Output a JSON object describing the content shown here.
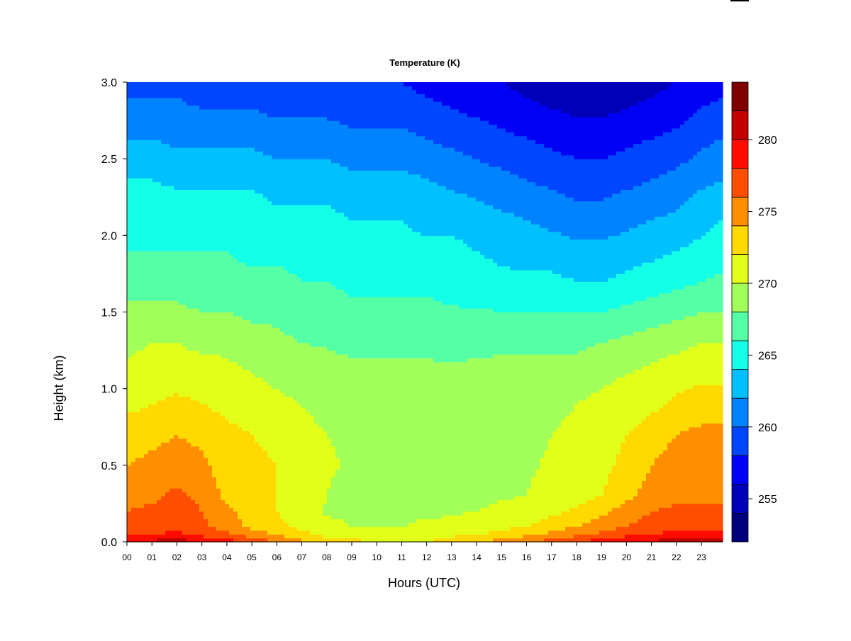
{
  "chart_data": {
    "type": "heatmap",
    "title": "Temperature (K)",
    "xlabel": "Hours (UTC)",
    "ylabel": "Height (km)",
    "x_ticks": [
      "00",
      "01",
      "02",
      "03",
      "04",
      "05",
      "06",
      "07",
      "08",
      "09",
      "10",
      "11",
      "12",
      "13",
      "14",
      "15",
      "16",
      "17",
      "18",
      "19",
      "20",
      "21",
      "22",
      "23"
    ],
    "y_ticks": [
      "0.0",
      "0.5",
      "1.0",
      "1.5",
      "2.0",
      "2.5",
      "3.0"
    ],
    "xlim": [
      0,
      23.85
    ],
    "ylim": [
      0,
      3.0
    ],
    "colorbar": {
      "levels": [
        252,
        254,
        256,
        258,
        260,
        262,
        264,
        266,
        268,
        270,
        272,
        274,
        276,
        278,
        280,
        282,
        284
      ],
      "colors": [
        "#00007f",
        "#0000b8",
        "#0000f5",
        "#0046ff",
        "#0083ff",
        "#00c0ff",
        "#14ffe7",
        "#55ffa6",
        "#a2ff5a",
        "#e2ff19",
        "#ffd900",
        "#ff8e00",
        "#ff4e00",
        "#ff0c00",
        "#c30000",
        "#7f0000"
      ],
      "tick_labels": [
        "255",
        "260",
        "265",
        "270",
        "275",
        "280"
      ],
      "tick_values": [
        255,
        260,
        265,
        270,
        275,
        280
      ]
    },
    "heights_km": [
      0.0,
      0.05,
      0.1,
      0.2,
      0.3,
      0.5,
      0.7,
      0.9,
      1.1,
      1.3,
      1.5,
      1.7,
      1.9,
      2.1,
      2.3,
      2.5,
      2.7,
      2.9,
      3.0
    ],
    "hours": [
      0,
      1,
      2,
      3,
      4,
      5,
      6,
      7,
      8,
      9,
      10,
      11,
      12,
      13,
      14,
      15,
      16,
      17,
      18,
      19,
      20,
      21,
      22,
      23,
      23.85
    ],
    "temperature_K": [
      [
        280.5,
        278.0,
        277.0,
        276.0,
        275.0,
        274.0,
        273.0,
        271.5,
        270.5,
        269.5,
        268.5,
        267.0,
        266.0,
        265.5,
        264.5,
        263.0,
        261.5,
        260.0,
        259.5
      ],
      [
        280.5,
        278.0,
        277.0,
        276.5,
        275.5,
        274.5,
        273.5,
        272.0,
        271.0,
        270.0,
        268.5,
        267.0,
        266.0,
        265.5,
        264.5,
        263.0,
        261.5,
        260.0,
        259.5
      ],
      [
        281.0,
        278.5,
        277.5,
        277.0,
        276.5,
        275.0,
        274.0,
        272.5,
        271.0,
        270.0,
        268.5,
        267.0,
        266.0,
        265.0,
        264.0,
        262.5,
        261.0,
        260.0,
        259.0
      ],
      [
        280.0,
        277.5,
        276.5,
        276.0,
        275.5,
        274.5,
        273.5,
        272.0,
        271.0,
        269.5,
        268.0,
        266.5,
        266.0,
        265.0,
        264.0,
        262.5,
        261.0,
        259.5,
        259.0
      ],
      [
        279.0,
        276.5,
        275.0,
        274.5,
        273.5,
        273.0,
        272.5,
        271.5,
        270.5,
        269.5,
        268.0,
        266.5,
        266.0,
        265.0,
        264.0,
        262.5,
        261.0,
        259.5,
        259.0
      ],
      [
        277.5,
        275.0,
        273.5,
        273.0,
        272.5,
        272.5,
        272.0,
        271.0,
        270.0,
        269.0,
        267.5,
        266.5,
        265.5,
        265.0,
        264.0,
        262.5,
        261.0,
        259.5,
        259.0
      ],
      [
        276.0,
        274.0,
        272.5,
        272.0,
        272.0,
        272.0,
        271.5,
        270.5,
        269.5,
        268.5,
        267.5,
        266.5,
        265.5,
        264.5,
        263.5,
        262.0,
        260.5,
        259.0,
        258.5
      ],
      [
        274.5,
        272.5,
        271.5,
        271.0,
        271.0,
        271.0,
        270.5,
        270.0,
        269.0,
        268.0,
        267.0,
        266.0,
        265.5,
        264.5,
        263.5,
        262.0,
        260.5,
        259.0,
        258.5
      ],
      [
        273.0,
        271.5,
        270.5,
        269.8,
        270.0,
        270.2,
        270.0,
        269.5,
        268.8,
        267.8,
        267.0,
        266.0,
        265.0,
        264.5,
        263.5,
        262.0,
        260.5,
        259.0,
        258.5
      ],
      [
        272.5,
        271.0,
        270.0,
        269.6,
        269.5,
        269.8,
        269.8,
        269.5,
        268.5,
        267.5,
        266.5,
        265.5,
        265.0,
        264.0,
        263.0,
        261.5,
        260.0,
        258.5,
        258.0
      ],
      [
        272.0,
        271.0,
        270.0,
        269.4,
        269.4,
        269.6,
        269.5,
        269.2,
        268.5,
        267.5,
        266.5,
        265.5,
        264.5,
        264.0,
        263.0,
        261.5,
        260.0,
        258.5,
        258.0
      ],
      [
        271.5,
        271.0,
        270.0,
        269.4,
        269.2,
        269.4,
        269.4,
        269.0,
        268.5,
        267.5,
        266.5,
        265.5,
        264.5,
        264.0,
        263.0,
        261.5,
        260.0,
        258.5,
        258.0
      ],
      [
        272.0,
        271.0,
        270.5,
        269.5,
        269.2,
        269.4,
        269.3,
        269.0,
        268.5,
        267.5,
        266.5,
        265.5,
        264.5,
        263.5,
        262.5,
        261.0,
        259.5,
        258.0,
        257.5
      ],
      [
        273.0,
        271.5,
        270.5,
        269.8,
        269.2,
        269.2,
        269.2,
        268.9,
        268.4,
        267.2,
        266.2,
        265.2,
        264.5,
        263.5,
        262.0,
        260.5,
        259.0,
        257.5,
        257.0
      ],
      [
        274.0,
        272.0,
        271.0,
        270.0,
        269.5,
        269.4,
        269.3,
        269.0,
        268.5,
        267.5,
        266.2,
        265.0,
        264.0,
        263.0,
        261.5,
        260.0,
        258.5,
        257.0,
        256.5
      ],
      [
        275.0,
        272.5,
        271.5,
        270.5,
        269.8,
        269.5,
        269.4,
        269.2,
        268.7,
        267.5,
        266.0,
        264.5,
        263.5,
        262.5,
        261.0,
        259.5,
        258.0,
        256.5,
        256.0
      ],
      [
        276.0,
        273.5,
        272.0,
        271.0,
        270.0,
        269.8,
        269.6,
        269.3,
        268.8,
        267.5,
        266.0,
        264.5,
        263.0,
        262.0,
        260.5,
        259.0,
        257.5,
        256.0,
        255.5
      ],
      [
        277.0,
        274.5,
        273.0,
        271.5,
        270.5,
        270.2,
        270.0,
        269.5,
        269.0,
        267.5,
        266.0,
        264.5,
        263.0,
        261.5,
        260.0,
        258.5,
        257.0,
        255.5,
        255.0
      ],
      [
        278.0,
        275.5,
        274.0,
        272.5,
        271.0,
        270.5,
        270.5,
        270.0,
        269.0,
        267.5,
        266.0,
        264.0,
        262.5,
        261.0,
        259.5,
        258.0,
        256.5,
        255.0,
        254.5
      ],
      [
        279.0,
        276.5,
        275.0,
        273.5,
        272.0,
        271.5,
        271.0,
        270.5,
        269.5,
        268.0,
        266.0,
        264.0,
        262.5,
        261.0,
        259.5,
        258.0,
        256.5,
        255.0,
        254.5
      ],
      [
        280.0,
        277.5,
        276.0,
        275.0,
        273.5,
        272.5,
        272.0,
        271.0,
        270.0,
        268.5,
        266.5,
        264.5,
        263.0,
        261.5,
        260.0,
        258.5,
        257.0,
        255.5,
        255.0
      ],
      [
        280.5,
        278.0,
        277.0,
        276.0,
        275.0,
        274.0,
        273.0,
        271.5,
        270.5,
        269.0,
        267.0,
        265.0,
        263.5,
        262.0,
        260.5,
        259.0,
        257.5,
        256.0,
        255.5
      ],
      [
        281.0,
        278.5,
        277.5,
        276.5,
        275.5,
        275.0,
        274.0,
        272.5,
        271.0,
        269.5,
        267.5,
        265.5,
        264.0,
        262.5,
        261.0,
        259.5,
        258.0,
        256.5,
        256.0
      ],
      [
        281.0,
        278.5,
        277.5,
        276.5,
        275.5,
        275.0,
        274.5,
        273.0,
        271.5,
        270.0,
        268.0,
        266.0,
        264.5,
        263.5,
        262.0,
        260.5,
        259.0,
        257.5,
        257.0
      ],
      [
        281.0,
        278.5,
        277.5,
        276.5,
        275.5,
        275.0,
        274.5,
        273.0,
        271.5,
        270.0,
        268.0,
        266.5,
        265.0,
        264.0,
        262.5,
        261.0,
        259.5,
        258.0,
        257.5
      ]
    ]
  }
}
